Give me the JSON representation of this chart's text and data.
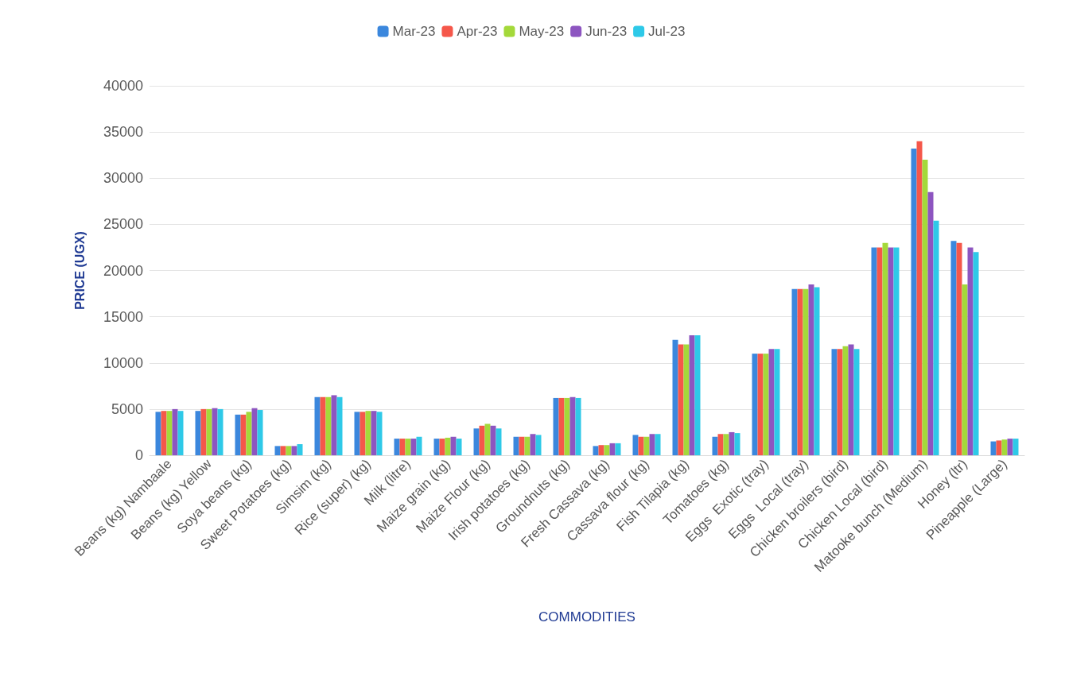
{
  "chart_data": {
    "type": "bar",
    "xlabel": "COMMODITIES",
    "ylabel": "PRICE (UGX)",
    "categories": [
      "Beans (kg) Nambaale",
      "Beans (kg) Yellow",
      "Soya beans (kg)",
      "Sweet Potatoes (kg)",
      "Simsim (kg)",
      "Rice (super) (kg)",
      "Milk (litre)",
      "Maize grain (kg)",
      "Maize Flour (kg)",
      "Irish potatoes (kg)",
      "Groundnuts (kg)",
      "Fresh Cassava (kg)",
      "Cassava flour (kg)",
      "Fish Tilapia (kg)",
      "Tomatoes (kg)",
      "Eggs  Exotic (tray)",
      "Eggs  Local (tray)",
      "Chicken broilers (bird)",
      "Chicken Local (bird)",
      "Matooke bunch (Medium)",
      "Honey (ltr)",
      "Pineapple (Large)"
    ],
    "series": [
      {
        "name": "Mar-23",
        "color": "#3b87dd",
        "values": [
          4700,
          4800,
          4400,
          1000,
          6300,
          4700,
          1800,
          1800,
          2900,
          2000,
          6200,
          1000,
          2200,
          12500,
          2000,
          11000,
          18000,
          11500,
          22500,
          33200,
          23200,
          1500
        ]
      },
      {
        "name": "Apr-23",
        "color": "#f5574a",
        "values": [
          4800,
          5000,
          4400,
          1000,
          6300,
          4700,
          1800,
          1800,
          3200,
          2000,
          6200,
          1100,
          2000,
          12000,
          2300,
          11000,
          18000,
          11500,
          22500,
          34000,
          23000,
          1600
        ]
      },
      {
        "name": "May-23",
        "color": "#a4d93a",
        "values": [
          4800,
          5000,
          4700,
          1000,
          6300,
          4800,
          1800,
          1900,
          3400,
          2000,
          6200,
          1100,
          2000,
          12000,
          2300,
          11000,
          18000,
          11800,
          23000,
          32000,
          18500,
          1700
        ]
      },
      {
        "name": "Jun-23",
        "color": "#8d55c0",
        "values": [
          5000,
          5100,
          5100,
          1000,
          6500,
          4800,
          1800,
          2000,
          3200,
          2300,
          6300,
          1300,
          2300,
          13000,
          2500,
          11500,
          18500,
          12000,
          22500,
          28500,
          22500,
          1800
        ]
      },
      {
        "name": "Jul-23",
        "color": "#2ec9e8",
        "values": [
          4800,
          5000,
          4900,
          1200,
          6300,
          4700,
          2000,
          1800,
          2900,
          2200,
          6200,
          1300,
          2300,
          13000,
          2400,
          11500,
          18200,
          11500,
          22500,
          25400,
          22000,
          1800
        ]
      }
    ],
    "ylim": [
      0,
      40000
    ],
    "yticks": [
      0,
      5000,
      10000,
      15000,
      20000,
      25000,
      30000,
      35000,
      40000
    ],
    "grid": "y",
    "legend": "top"
  }
}
